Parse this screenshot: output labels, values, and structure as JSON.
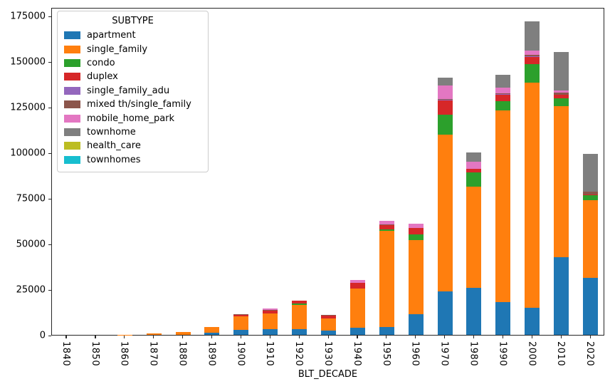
{
  "chart_data": {
    "type": "bar",
    "stacked": true,
    "title": "",
    "xlabel": "BLT_DECADE",
    "ylabel": "",
    "legend_title": "SUBTYPE",
    "legend_position": "upper left",
    "grid": false,
    "ylim": [
      0,
      179700
    ],
    "y_ticks": [
      0,
      25000,
      50000,
      75000,
      100000,
      125000,
      150000,
      175000
    ],
    "categories": [
      "1840",
      "1850",
      "1860",
      "1870",
      "1880",
      "1890",
      "1900",
      "1910",
      "1920",
      "1930",
      "1940",
      "1950",
      "1960",
      "1970",
      "1980",
      "1990",
      "2000",
      "2010",
      "2020"
    ],
    "series": [
      {
        "name": "apartment",
        "color": "#1f77b4",
        "values": [
          0,
          0,
          0,
          0,
          0,
          1100,
          2700,
          3000,
          3000,
          2200,
          4000,
          4300,
          11500,
          23800,
          25800,
          18000,
          14700,
          42700,
          31400
        ]
      },
      {
        "name": "single_family",
        "color": "#ff7f0e",
        "values": [
          0,
          0,
          100,
          600,
          1400,
          3200,
          7400,
          8600,
          13500,
          6700,
          21500,
          52700,
          40400,
          86000,
          55300,
          105000,
          123700,
          82700,
          42600
        ]
      },
      {
        "name": "condo",
        "color": "#2ca02c",
        "values": [
          0,
          0,
          0,
          0,
          0,
          0,
          0,
          0,
          650,
          0,
          0,
          700,
          3250,
          11000,
          7800,
          5200,
          10000,
          4300,
          2600
        ]
      },
      {
        "name": "duplex",
        "color": "#d62728",
        "values": [
          0,
          0,
          0,
          0,
          0,
          0,
          1000,
          1700,
          1550,
          1550,
          3200,
          2600,
          3600,
          7700,
          2000,
          3700,
          3800,
          1850,
          300
        ]
      },
      {
        "name": "single_family_adu",
        "color": "#9467bd",
        "values": [
          0,
          0,
          0,
          0,
          0,
          0,
          0,
          0,
          0,
          0,
          0,
          0,
          0,
          500,
          0,
          200,
          600,
          0,
          0
        ]
      },
      {
        "name": "mixed th/single_family",
        "color": "#8c564b",
        "values": [
          0,
          0,
          0,
          0,
          0,
          0,
          300,
          300,
          0,
          400,
          0,
          300,
          0,
          400,
          0,
          300,
          600,
          1300,
          1700
        ]
      },
      {
        "name": "mobile_home_park",
        "color": "#e377c2",
        "values": [
          0,
          0,
          0,
          0,
          0,
          0,
          0,
          900,
          0,
          0,
          1300,
          1950,
          2200,
          7400,
          4100,
          3200,
          2300,
          1050,
          0
        ]
      },
      {
        "name": "townhome",
        "color": "#7f7f7f",
        "values": [
          0,
          0,
          0,
          0,
          0,
          0,
          0,
          0,
          0,
          0,
          0,
          0,
          0,
          4200,
          5000,
          6900,
          16300,
          21100,
          20500
        ]
      },
      {
        "name": "health_care",
        "color": "#bcbd22",
        "values": [
          0,
          0,
          0,
          0,
          0,
          0,
          0,
          0,
          0,
          0,
          0,
          0,
          0,
          0,
          0,
          0,
          0,
          0,
          0
        ]
      },
      {
        "name": "townhomes",
        "color": "#17becf",
        "values": [
          0,
          0,
          0,
          0,
          0,
          0,
          0,
          0,
          0,
          0,
          0,
          0,
          0,
          0,
          0,
          0,
          0,
          0,
          0
        ]
      }
    ]
  }
}
